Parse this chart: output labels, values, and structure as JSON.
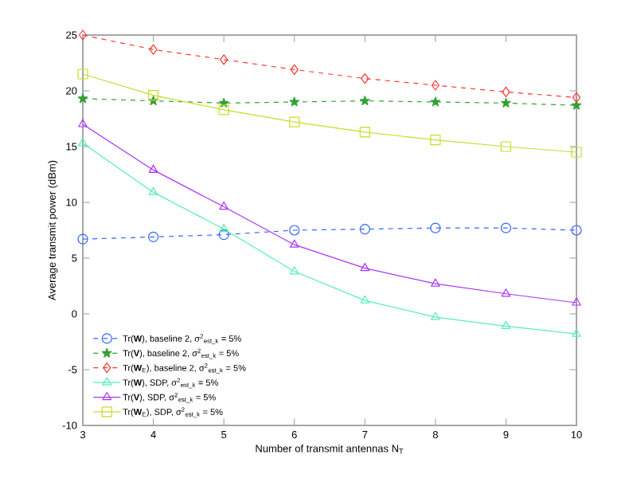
{
  "chart_data": {
    "type": "line",
    "xlabel": "Number of transmit antennas N$_{T}$",
    "ylabel": "Average transmit power (dBm)",
    "x": [
      3,
      4,
      5,
      6,
      7,
      8,
      9,
      10
    ],
    "xlim": [
      3,
      10
    ],
    "xticks": [
      3,
      4,
      5,
      6,
      7,
      8,
      9,
      10
    ],
    "ylim": [
      -10,
      25
    ],
    "yticks": [
      -10,
      -5,
      0,
      5,
      10,
      15,
      20,
      25
    ],
    "grid": false,
    "legend": "bottom left",
    "series": [
      {
        "name": "Tr(**W**), baseline 2, σ$^{2}$$_{est_k}$ = 5%",
        "color": "#3366ff",
        "marker": "circle",
        "line_style": "dashed",
        "values": [
          6.7,
          6.9,
          7.1,
          7.5,
          7.6,
          7.7,
          7.7,
          7.5
        ]
      },
      {
        "name": "Tr(**V**), baseline 2, σ$^{2}$$_{est_k}$ = 5%",
        "color": "#33a033",
        "marker": "star",
        "line_style": "dashed",
        "values": [
          19.3,
          19.1,
          18.9,
          19.0,
          19.1,
          19.0,
          18.9,
          18.7
        ]
      },
      {
        "name": "Tr(**W**$_{E}$), baseline 2, σ$^{2}$$_{est_k}$ = 5%",
        "color": "#ff3333",
        "marker": "diamond",
        "line_style": "dashed",
        "values": [
          25.0,
          23.7,
          22.8,
          21.9,
          21.1,
          20.5,
          19.9,
          19.4
        ]
      },
      {
        "name": "Tr(**W**), SDP, σ$^{2}$$_{est_k}$ = 5%",
        "color": "#55f0b0",
        "marker": "triangle",
        "line_style": "solid",
        "values": [
          15.3,
          10.9,
          7.6,
          3.8,
          1.2,
          -0.3,
          -1.1,
          -1.8
        ]
      },
      {
        "name": "Tr(**V**), SDP, σ$^{2}$$_{est_k}$ = 5%",
        "color": "#aa33ff",
        "marker": "triangle",
        "line_style": "solid",
        "values": [
          17.0,
          12.9,
          9.6,
          6.2,
          4.1,
          2.7,
          1.8,
          1.0
        ]
      },
      {
        "name": "Tr(**W**$_{E}$), SDP, σ$^{2}$$_{est_k}$ = 5%",
        "color": "#c8dc28",
        "marker": "square",
        "line_style": "solid",
        "values": [
          21.5,
          19.6,
          18.3,
          17.2,
          16.3,
          15.6,
          15.0,
          14.5
        ]
      }
    ]
  }
}
